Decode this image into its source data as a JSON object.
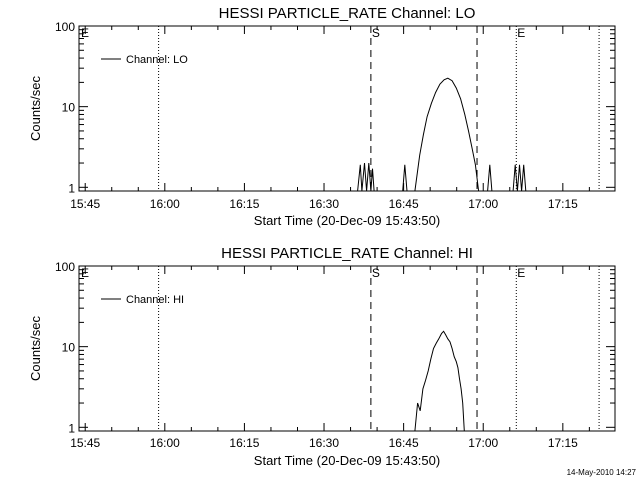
{
  "footer": {
    "stamp": "14-May-2010 14:27"
  },
  "chart_data": [
    {
      "type": "line",
      "title": "HESSI PARTICLE_RATE Channel: LO",
      "xlabel": "Start Time (20-Dec-09 15:43:50)",
      "ylabel": "Counts/sec",
      "x_unit": "minutes since 15:43:50",
      "xlim": [
        0,
        101
      ],
      "ylim": [
        0.9,
        100
      ],
      "yscale": "log",
      "grid": false,
      "legend_position": "top-left",
      "x_ticks": [
        {
          "label": "15:45",
          "value": 1.17
        },
        {
          "label": "16:00",
          "value": 16.17
        },
        {
          "label": "16:15",
          "value": 31.17
        },
        {
          "label": "16:30",
          "value": 46.17
        },
        {
          "label": "16:45",
          "value": 61.17
        },
        {
          "label": "17:00",
          "value": 76.17
        },
        {
          "label": "17:15",
          "value": 91.17
        }
      ],
      "y_ticks": [
        {
          "label": "1",
          "value": 1
        },
        {
          "label": "10",
          "value": 10
        },
        {
          "label": "100",
          "value": 100
        }
      ],
      "markers": [
        {
          "style": "dotted",
          "x": 15.0,
          "label": ""
        },
        {
          "style": "dashed",
          "x": 55.0,
          "label": "S"
        },
        {
          "style": "dashed",
          "x": 75.0,
          "label": ""
        },
        {
          "style": "dotted",
          "x": 82.4,
          "label": "E"
        },
        {
          "style": "dotted",
          "x": 98.0,
          "label": ""
        }
      ],
      "edge_labels": {
        "left": "E"
      },
      "series": [
        {
          "name": "Channel: LO",
          "points": [
            [
              52.5,
              0.9
            ],
            [
              53.0,
              1.9
            ],
            [
              53.3,
              0.9
            ],
            [
              53.8,
              2.0
            ],
            [
              54.2,
              0.9
            ],
            [
              54.6,
              2.0
            ],
            [
              55.0,
              0.9
            ],
            [
              55.3,
              1.7
            ],
            [
              55.6,
              0.9
            ],
            [
              61.0,
              0.9
            ],
            [
              61.4,
              1.9
            ],
            [
              61.8,
              0.9
            ],
            [
              63.3,
              0.9
            ],
            [
              64.2,
              2.5
            ],
            [
              64.9,
              4.5
            ],
            [
              65.6,
              7.5
            ],
            [
              66.4,
              11.0
            ],
            [
              67.2,
              15.0
            ],
            [
              68.0,
              19.0
            ],
            [
              68.8,
              21.5
            ],
            [
              69.5,
              22.5
            ],
            [
              70.3,
              21.0
            ],
            [
              71.1,
              17.0
            ],
            [
              71.9,
              12.5
            ],
            [
              72.7,
              8.0
            ],
            [
              73.4,
              5.0
            ],
            [
              74.1,
              3.0
            ],
            [
              74.7,
              1.9
            ],
            [
              75.3,
              0.9
            ],
            [
              77.0,
              0.9
            ],
            [
              77.4,
              1.9
            ],
            [
              77.8,
              0.9
            ],
            [
              81.8,
              0.9
            ],
            [
              82.2,
              1.9
            ],
            [
              82.6,
              0.9
            ],
            [
              83.0,
              1.9
            ],
            [
              83.4,
              0.9
            ],
            [
              83.8,
              1.9
            ],
            [
              84.2,
              0.9
            ]
          ]
        }
      ]
    },
    {
      "type": "line",
      "title": "HESSI PARTICLE_RATE Channel: HI",
      "xlabel": "Start Time (20-Dec-09 15:43:50)",
      "ylabel": "Counts/sec",
      "x_unit": "minutes since 15:43:50",
      "xlim": [
        0,
        101
      ],
      "ylim": [
        0.9,
        100
      ],
      "yscale": "log",
      "grid": false,
      "legend_position": "top-left",
      "x_ticks": [
        {
          "label": "15:45",
          "value": 1.17
        },
        {
          "label": "16:00",
          "value": 16.17
        },
        {
          "label": "16:15",
          "value": 31.17
        },
        {
          "label": "16:30",
          "value": 46.17
        },
        {
          "label": "16:45",
          "value": 61.17
        },
        {
          "label": "17:00",
          "value": 76.17
        },
        {
          "label": "17:15",
          "value": 91.17
        }
      ],
      "y_ticks": [
        {
          "label": "1",
          "value": 1
        },
        {
          "label": "10",
          "value": 10
        },
        {
          "label": "100",
          "value": 100
        }
      ],
      "markers": [
        {
          "style": "dotted",
          "x": 15.0,
          "label": ""
        },
        {
          "style": "dashed",
          "x": 55.0,
          "label": "S"
        },
        {
          "style": "dashed",
          "x": 75.0,
          "label": ""
        },
        {
          "style": "dotted",
          "x": 82.4,
          "label": "E"
        },
        {
          "style": "dotted",
          "x": 98.0,
          "label": ""
        }
      ],
      "edge_labels": {
        "left": "E"
      },
      "series": [
        {
          "name": "Channel: HI",
          "points": [
            [
              63.3,
              0.9
            ],
            [
              63.8,
              2.0
            ],
            [
              64.3,
              1.6
            ],
            [
              64.8,
              3.0
            ],
            [
              65.3,
              3.8
            ],
            [
              65.8,
              5.0
            ],
            [
              66.3,
              7.0
            ],
            [
              66.8,
              9.5
            ],
            [
              67.3,
              11.0
            ],
            [
              67.8,
              12.5
            ],
            [
              68.3,
              14.5
            ],
            [
              68.7,
              15.5
            ],
            [
              69.1,
              14.0
            ],
            [
              69.5,
              12.5
            ],
            [
              69.9,
              11.5
            ],
            [
              70.3,
              9.5
            ],
            [
              70.7,
              7.5
            ],
            [
              71.1,
              6.5
            ],
            [
              71.4,
              5.5
            ],
            [
              71.7,
              4.0
            ],
            [
              72.0,
              3.0
            ],
            [
              72.3,
              2.0
            ],
            [
              72.6,
              0.9
            ]
          ]
        }
      ]
    }
  ]
}
